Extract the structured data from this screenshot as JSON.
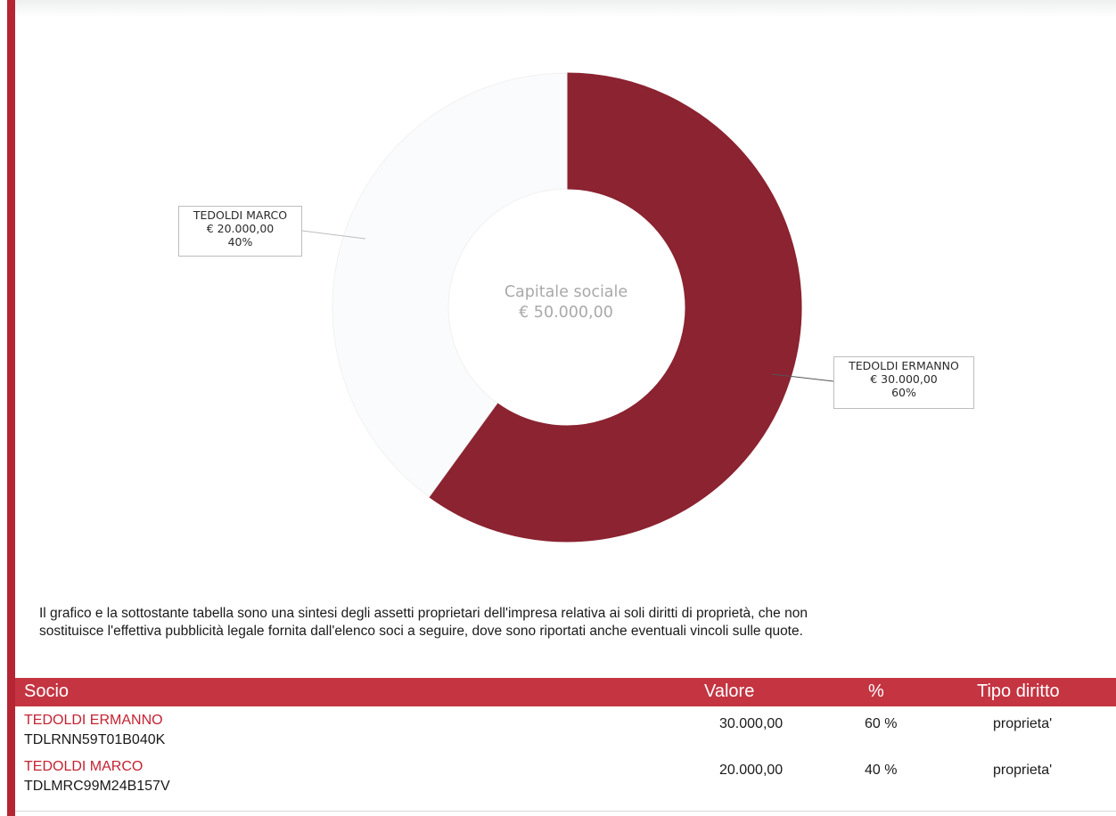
{
  "chart_data": {
    "type": "pie",
    "center_label": [
      "Capitale sociale",
      "€ 50.000,00"
    ],
    "slices": [
      {
        "name": "TEDOLDI ERMANNO",
        "amount": "€ 30.000,00",
        "percent_label": "60%",
        "value": 60,
        "color": "#8b2331"
      },
      {
        "name": "TEDOLDI MARCO",
        "amount": "€ 20.000,00",
        "percent_label": "40%",
        "value": 40,
        "color": "#fafbfc"
      }
    ]
  },
  "note": {
    "line1": "Il grafico e la sottostante tabella sono una sintesi degli assetti proprietari dell'impresa relativa ai soli diritti di proprietà, che non",
    "line2": "sostituisce l'effettiva pubblicità legale fornita dall'elenco soci a seguire, dove sono riportati anche eventuali vincoli sulle quote."
  },
  "table": {
    "headers": {
      "socio": "Socio",
      "valore": "Valore",
      "pct": "%",
      "tipo": "Tipo diritto"
    },
    "rows": [
      {
        "name": "TEDOLDI ERMANNO",
        "code": "TDLRNN59T01B040K",
        "valore": "30.000,00",
        "pct": "60 %",
        "tipo": "proprieta'"
      },
      {
        "name": "TEDOLDI MARCO",
        "code": "TDLMRC99M24B157V",
        "valore": "20.000,00",
        "pct": "40 %",
        "tipo": "proprieta'"
      }
    ]
  },
  "colors": {
    "accent": "#b52533",
    "table_header": "#c43441",
    "name_text": "#c42231"
  }
}
